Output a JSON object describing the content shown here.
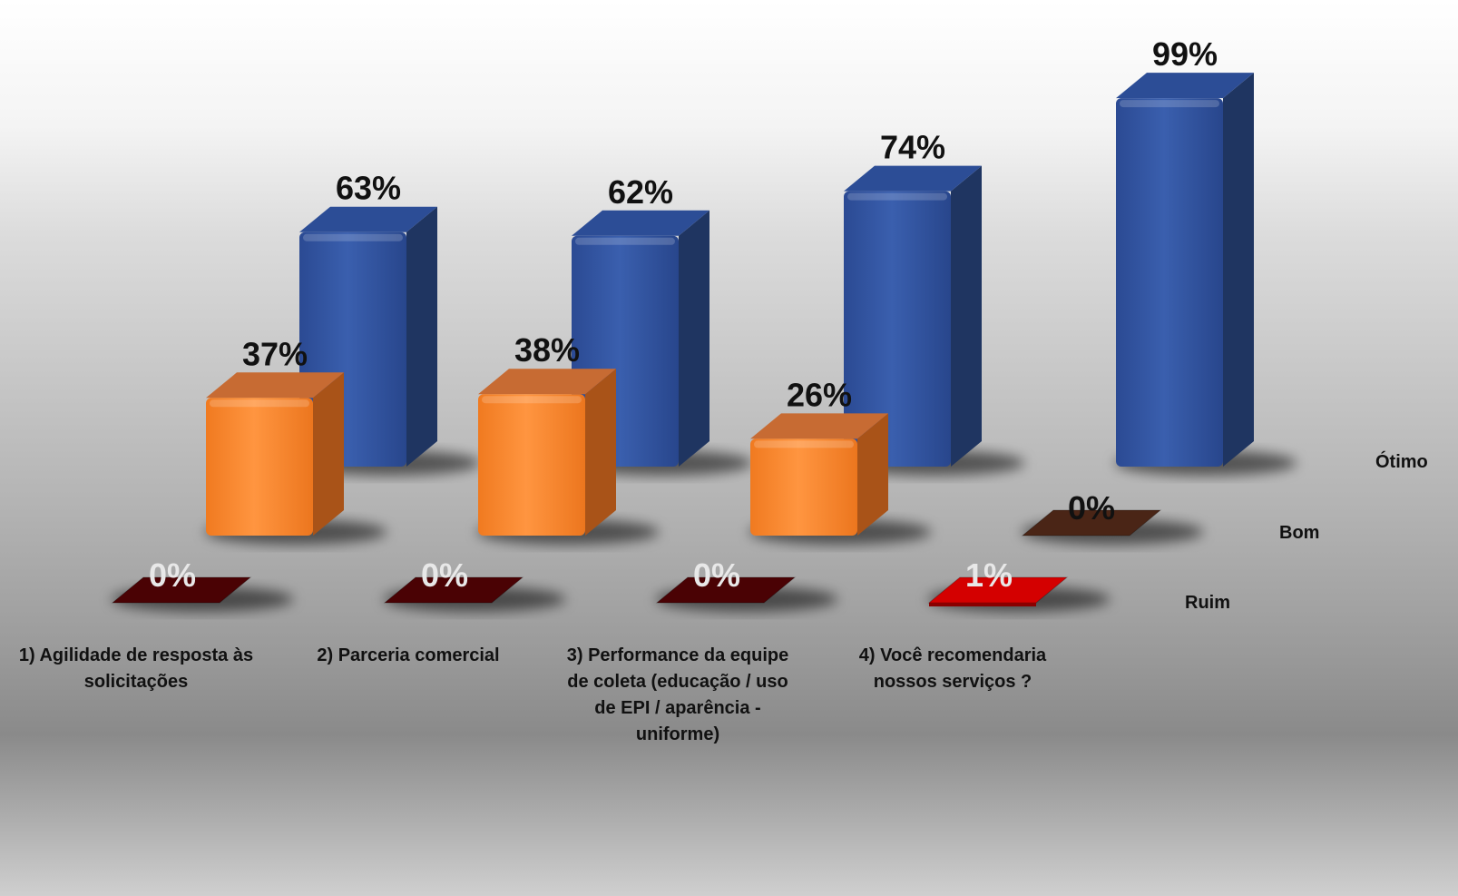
{
  "chart_data": {
    "type": "bar",
    "title": "",
    "categories": [
      "1) Agilidade de resposta às solicitações",
      "2) Parceria comercial",
      "3) Performance da equipe de coleta (educação / uso de EPI / aparência - uniforme)",
      "4) Você recomendaria nossos serviços ?"
    ],
    "series": [
      {
        "name": "Ótimo",
        "values": [
          63,
          62,
          74,
          99
        ],
        "labels": [
          "63%",
          "62%",
          "74%",
          "99%"
        ],
        "color": "#2e4f98"
      },
      {
        "name": "Bom",
        "values": [
          37,
          38,
          26,
          0
        ],
        "labels": [
          "37%",
          "38%",
          "26%",
          "0%"
        ],
        "color": "#f27a22"
      },
      {
        "name": "Ruim",
        "values": [
          0,
          0,
          0,
          1
        ],
        "labels": [
          "0%",
          "0%",
          "0%",
          "1%"
        ],
        "color": "#d40000"
      }
    ],
    "ylim": [
      0,
      100
    ],
    "grid": false,
    "legend": "right-depth-axis"
  }
}
